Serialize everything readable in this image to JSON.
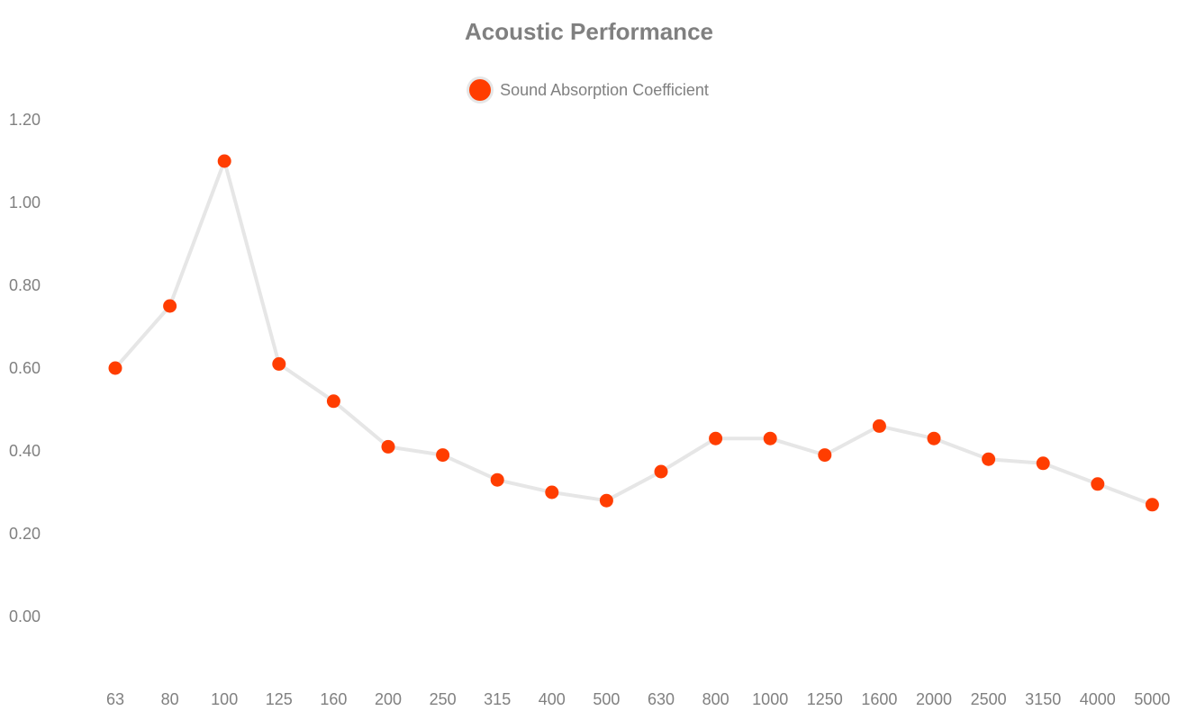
{
  "chart_data": {
    "type": "line",
    "title": "Acoustic Performance",
    "xlabel": "",
    "ylabel": "",
    "categories": [
      "63",
      "80",
      "100",
      "125",
      "160",
      "200",
      "250",
      "315",
      "400",
      "500",
      "630",
      "800",
      "1000",
      "1250",
      "1600",
      "2000",
      "2500",
      "3150",
      "4000",
      "5000"
    ],
    "series": [
      {
        "name": "Sound Absorption Coefficient",
        "values": [
          0.6,
          0.75,
          1.1,
          0.61,
          0.52,
          0.41,
          0.39,
          0.33,
          0.3,
          0.28,
          0.35,
          0.43,
          0.43,
          0.39,
          0.46,
          0.43,
          0.38,
          0.37,
          0.32,
          0.27
        ]
      }
    ],
    "ylim": [
      0,
      1.2
    ],
    "yticks": [
      "0.00",
      "0.20",
      "0.40",
      "0.60",
      "0.80",
      "1.00",
      "1.20"
    ],
    "grid": false,
    "legend_position": "top-center",
    "colors": {
      "marker": "#ff3d00",
      "line": "#e6e6e6",
      "text": "#808080"
    }
  }
}
